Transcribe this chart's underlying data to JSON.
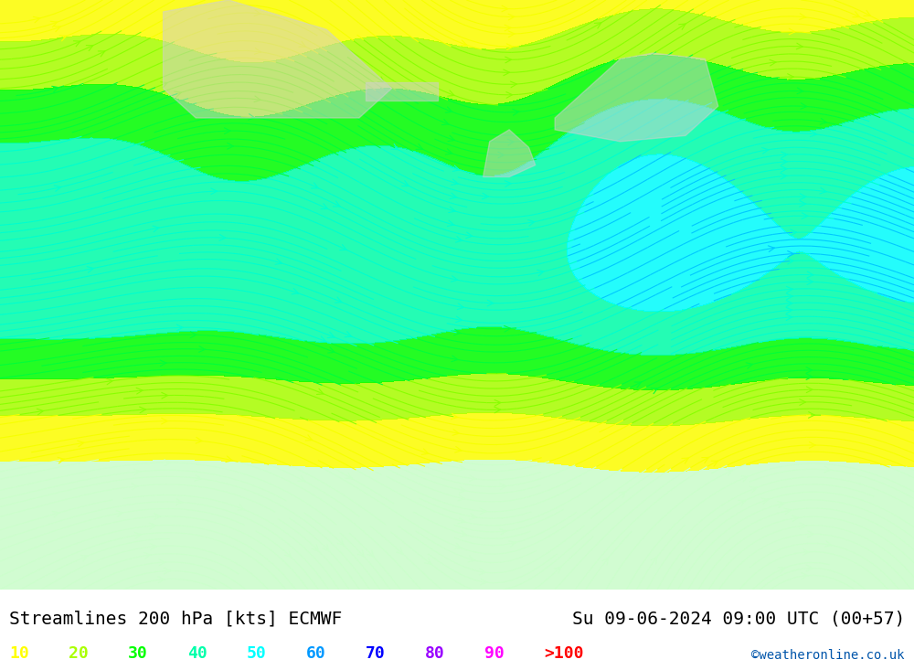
{
  "title_left": "Streamlines 200 hPa [kts] ECMWF",
  "title_right": "Su 09-06-2024 09:00 UTC (00+57)",
  "credit": "©weatheronline.co.uk",
  "legend_labels": [
    "10",
    "20",
    "30",
    "40",
    "50",
    "60",
    "70",
    "80",
    "90",
    ">100"
  ],
  "legend_colors": [
    "#ffff00",
    "#aaff00",
    "#00ff00",
    "#00ffaa",
    "#00ffff",
    "#0099ff",
    "#0000ff",
    "#9900ff",
    "#ff00ff",
    "#ff0000"
  ],
  "speed_thresholds": [
    0,
    10,
    20,
    30,
    40,
    50,
    60,
    70,
    80,
    90,
    100
  ],
  "colormap_colors": [
    "#ccffcc",
    "#ffff00",
    "#aaff00",
    "#00ff00",
    "#00ffaa",
    "#00ffff",
    "#0099ff",
    "#0000ff",
    "#9900ff",
    "#ff00ff",
    "#ff0000"
  ],
  "background_color": "#ffffff",
  "land_color": "#d3d3d3",
  "sea_color": "#ffffff",
  "fig_width": 10.0,
  "fig_height": 7.33,
  "dpi": 100,
  "map_extent": [
    -80,
    60,
    -20,
    80
  ],
  "streamline_density": 3,
  "streamline_linewidth": 0.8,
  "arrow_size": 1.2
}
